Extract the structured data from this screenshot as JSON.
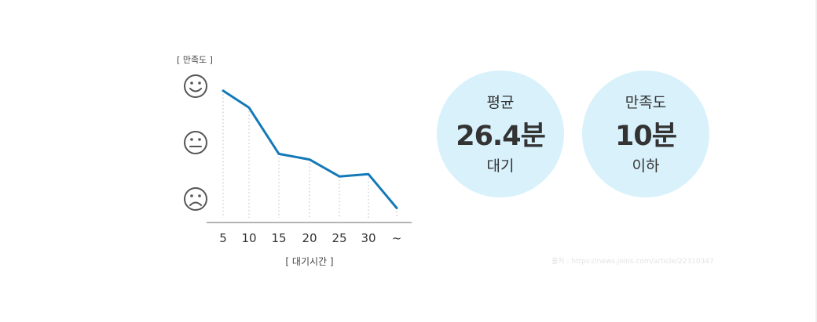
{
  "chart_data": {
    "type": "line",
    "ylabel": "[ 만족도 ]",
    "xlabel": "[ 대기시간 ]",
    "categories": [
      "5",
      "10",
      "15",
      "20",
      "25",
      "30",
      "~"
    ],
    "y_levels": [
      {
        "name": "satisfied",
        "icon": "smile-face-icon"
      },
      {
        "name": "neutral",
        "icon": "neutral-face-icon"
      },
      {
        "name": "dissatisfied",
        "icon": "frown-face-icon"
      }
    ],
    "ylim": [
      0,
      1
    ],
    "values": [
      0.96,
      0.81,
      0.4,
      0.35,
      0.2,
      0.22,
      -0.08
    ],
    "grid": "dotted vertical drop lines",
    "colors": {
      "line": "#1479b8",
      "axis": "#888888",
      "icon": "#555555",
      "dots": "#bbbbbb"
    }
  },
  "stats": {
    "average": {
      "top": "평균",
      "value": "26.4분",
      "bottom": "대기"
    },
    "satisfaction": {
      "top": "만족도",
      "value": "10분",
      "bottom": "이하"
    },
    "circle_color": "#d8f1fb"
  },
  "source": "출처 : https://news.joins.com/article/22310347"
}
